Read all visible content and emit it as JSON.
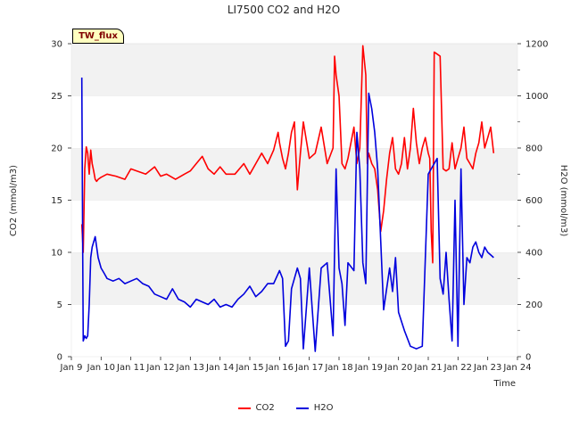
{
  "chart_data": {
    "type": "line",
    "title": "LI7500 CO2 and H2O",
    "site_label": "TW_flux",
    "xlabel": "Time",
    "ylabel_left": "CO2 (mmol/m3)",
    "ylabel_right": "H2O (mmol/m3)",
    "xlim": [
      9,
      24
    ],
    "ylim_left": [
      0,
      30
    ],
    "ylim_right": [
      0,
      1200
    ],
    "x_tick_labels": [
      "Jan 9",
      "Jan 10",
      "Jan 11",
      "Jan 12",
      "Jan 13",
      "Jan 14",
      "Jan 15",
      "Jan 16",
      "Jan 17",
      "Jan 18",
      "Jan 19",
      "Jan 20",
      "Jan 21",
      "Jan 22",
      "Jan 23",
      "Jan 24"
    ],
    "x_ticks": [
      9,
      10,
      11,
      12,
      13,
      14,
      15,
      16,
      17,
      18,
      19,
      20,
      21,
      22,
      23,
      24
    ],
    "y_ticks_left": [
      0,
      5,
      10,
      15,
      20,
      25,
      30
    ],
    "y_ticks_right": [
      0,
      200,
      400,
      600,
      800,
      1000,
      1200
    ],
    "grid": "horizontal bands",
    "legend_position": "bottom-center",
    "series": [
      {
        "name": "CO2",
        "color": "#ff0000",
        "axis": "left",
        "x": [
          9.35,
          9.4,
          9.45,
          9.5,
          9.55,
          9.6,
          9.65,
          9.7,
          9.75,
          9.8,
          9.85,
          9.9,
          10.0,
          10.2,
          10.5,
          10.8,
          11.0,
          11.2,
          11.5,
          11.8,
          12.0,
          12.2,
          12.5,
          12.8,
          13.0,
          13.2,
          13.4,
          13.6,
          13.8,
          14.0,
          14.2,
          14.5,
          14.8,
          15.0,
          15.2,
          15.4,
          15.6,
          15.8,
          15.95,
          16.0,
          16.1,
          16.2,
          16.3,
          16.4,
          16.5,
          16.6,
          16.7,
          16.8,
          17.0,
          17.2,
          17.4,
          17.6,
          17.8,
          17.85,
          17.9,
          18.0,
          18.1,
          18.2,
          18.3,
          18.5,
          18.6,
          18.7,
          18.8,
          18.9,
          18.95,
          19.0,
          19.1,
          19.2,
          19.3,
          19.4,
          19.5,
          19.6,
          19.7,
          19.8,
          19.9,
          20.0,
          20.1,
          20.2,
          20.3,
          20.4,
          20.5,
          20.6,
          20.7,
          20.8,
          20.9,
          21.0,
          21.05,
          21.1,
          21.15,
          21.2,
          21.3,
          21.4,
          21.5,
          21.6,
          21.7,
          21.8,
          21.9,
          22.0,
          22.1,
          22.2,
          22.3,
          22.4,
          22.5,
          22.6,
          22.7,
          22.8,
          22.9,
          23.0,
          23.1,
          23.2
        ],
        "y": [
          12.7,
          10.0,
          18.0,
          20.1,
          19.5,
          17.5,
          19.8,
          18.5,
          17.8,
          17.0,
          16.8,
          17.0,
          17.2,
          17.5,
          17.3,
          17.0,
          18.0,
          17.8,
          17.5,
          18.2,
          17.3,
          17.5,
          17.0,
          17.5,
          17.8,
          18.5,
          19.2,
          18.0,
          17.5,
          18.2,
          17.5,
          17.5,
          18.5,
          17.5,
          18.5,
          19.5,
          18.5,
          19.8,
          21.5,
          20.5,
          19.0,
          18.0,
          19.5,
          21.5,
          22.5,
          16.0,
          19.5,
          22.5,
          19.0,
          19.5,
          22.0,
          18.5,
          20.0,
          28.8,
          27.0,
          25.0,
          18.5,
          18.0,
          19.0,
          22.0,
          18.5,
          20.0,
          29.8,
          27.0,
          18.5,
          19.5,
          18.5,
          18.0,
          16.0,
          12.0,
          14.0,
          17.0,
          19.5,
          21.0,
          18.0,
          17.5,
          18.5,
          21.0,
          18.0,
          20.0,
          23.8,
          20.5,
          18.5,
          20.0,
          21.0,
          19.5,
          19.0,
          12.0,
          9.0,
          29.2,
          29.0,
          28.8,
          18.0,
          17.8,
          18.0,
          20.5,
          18.0,
          19.0,
          20.0,
          22.0,
          19.0,
          18.5,
          18.0,
          19.5,
          20.5,
          22.5,
          20.0,
          21.0,
          22.0,
          19.5
        ]
      },
      {
        "name": "H2O",
        "color": "#0000dd",
        "axis": "right",
        "x": [
          9.35,
          9.38,
          9.4,
          9.45,
          9.5,
          9.55,
          9.6,
          9.65,
          9.7,
          9.8,
          9.9,
          10.0,
          10.1,
          10.2,
          10.4,
          10.6,
          10.8,
          11.0,
          11.2,
          11.4,
          11.6,
          11.8,
          12.0,
          12.2,
          12.4,
          12.6,
          12.8,
          13.0,
          13.2,
          13.4,
          13.6,
          13.8,
          14.0,
          14.2,
          14.4,
          14.6,
          14.8,
          15.0,
          15.2,
          15.4,
          15.6,
          15.8,
          16.0,
          16.1,
          16.2,
          16.3,
          16.4,
          16.5,
          16.6,
          16.7,
          16.8,
          17.0,
          17.2,
          17.4,
          17.6,
          17.8,
          17.9,
          18.0,
          18.1,
          18.2,
          18.3,
          18.5,
          18.6,
          18.7,
          18.8,
          18.9,
          19.0,
          19.1,
          19.2,
          19.3,
          19.5,
          19.7,
          19.8,
          19.9,
          20.0,
          20.2,
          20.4,
          20.6,
          20.8,
          21.0,
          21.1,
          21.2,
          21.3,
          21.4,
          21.5,
          21.6,
          21.7,
          21.8,
          21.9,
          22.0,
          22.1,
          22.2,
          22.3,
          22.4,
          22.5,
          22.6,
          22.7,
          22.8,
          22.9,
          23.0,
          23.1,
          23.2
        ],
        "y": [
          1070,
          400,
          60,
          80,
          70,
          80,
          200,
          380,
          420,
          460,
          380,
          340,
          320,
          300,
          290,
          300,
          280,
          290,
          300,
          280,
          270,
          240,
          230,
          220,
          260,
          220,
          210,
          190,
          220,
          210,
          200,
          220,
          190,
          200,
          190,
          220,
          240,
          270,
          230,
          250,
          280,
          280,
          330,
          300,
          40,
          60,
          260,
          300,
          340,
          300,
          30,
          340,
          20,
          340,
          360,
          80,
          720,
          340,
          280,
          120,
          360,
          330,
          860,
          720,
          360,
          280,
          1010,
          950,
          860,
          720,
          180,
          340,
          250,
          380,
          170,
          100,
          40,
          30,
          40,
          700,
          720,
          740,
          760,
          300,
          240,
          400,
          220,
          60,
          600,
          40,
          720,
          200,
          380,
          360,
          420,
          440,
          400,
          380,
          420,
          400,
          390,
          380
        ]
      }
    ]
  }
}
